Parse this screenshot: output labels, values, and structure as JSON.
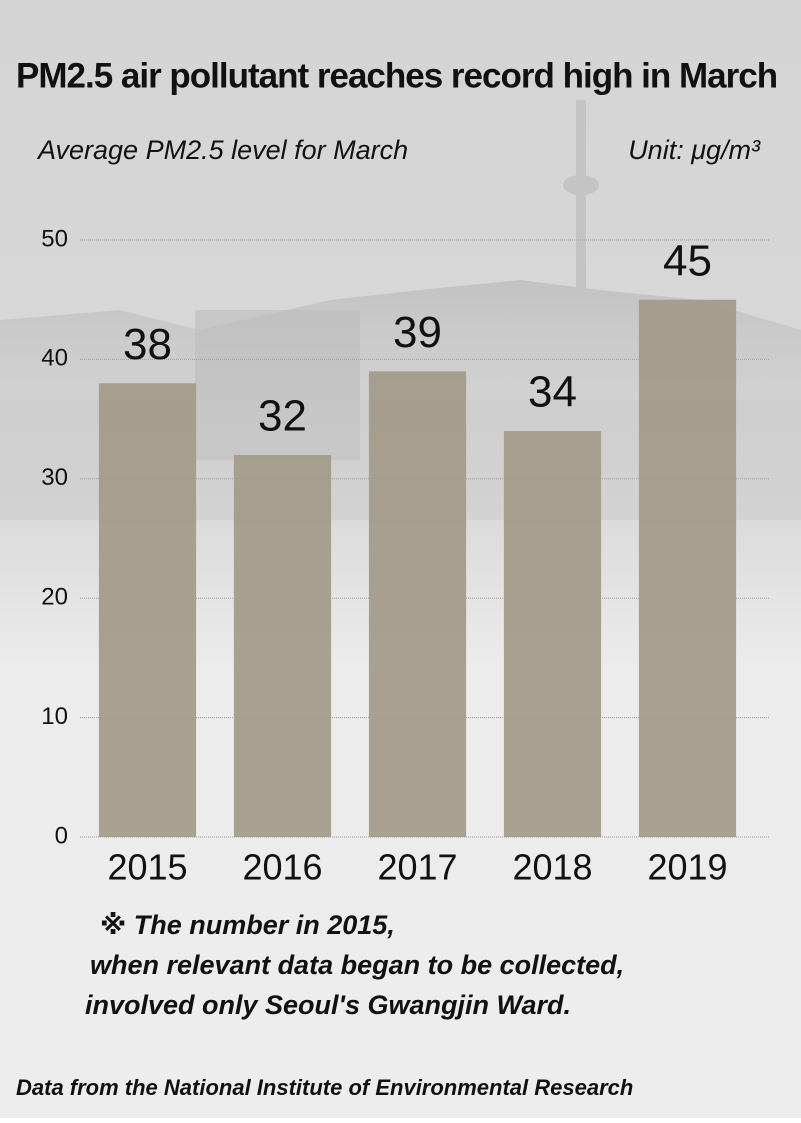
{
  "chart_data": {
    "type": "bar",
    "title": "PM2.5 air pollutant reaches record high in March",
    "subtitle": "Average PM2.5 level for March",
    "unit": "Unit: μg/m³",
    "categories": [
      "2015",
      "2016",
      "2017",
      "2018",
      "2019"
    ],
    "values": [
      38,
      32,
      39,
      34,
      45
    ],
    "color": "#a39a88",
    "ylim": [
      0,
      50
    ],
    "yticks": [
      0,
      10,
      20,
      30,
      40,
      50
    ],
    "grid": true,
    "note": [
      "※ The number in 2015,",
      "when relevant data began to be collected,",
      "involved only Seoul's Gwangjin Ward."
    ],
    "source": "Data from the National Institute of Environmental Research"
  }
}
